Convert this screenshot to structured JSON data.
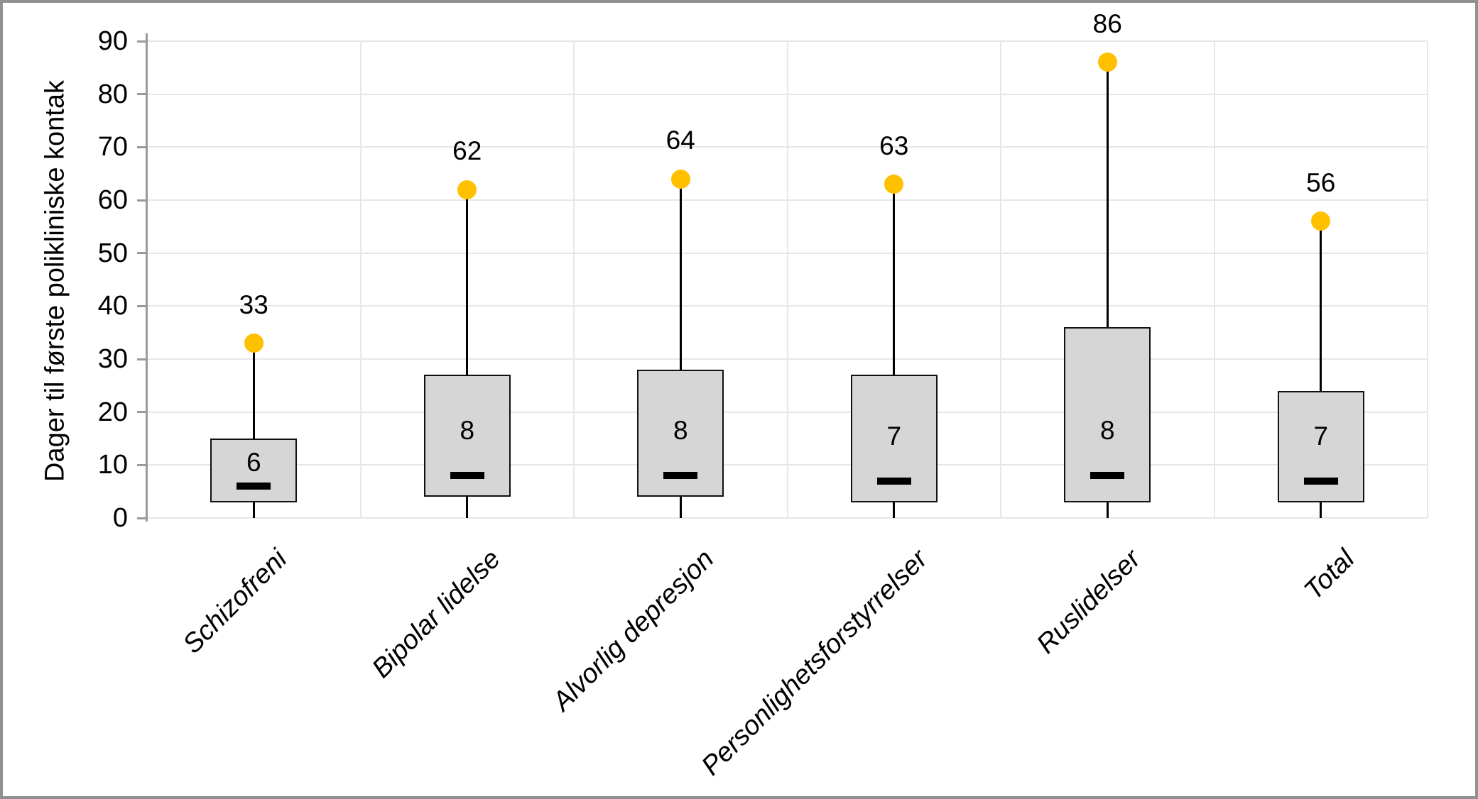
{
  "figure": {
    "background": "#ffffff",
    "frame_border_color": "#919191"
  },
  "y_axis": {
    "title": "Dager til første polikliniske kontak",
    "min": 0,
    "max": 90,
    "step": 10,
    "tick_labels": [
      "0",
      "10",
      "20",
      "30",
      "40",
      "50",
      "60",
      "70",
      "80",
      "90"
    ]
  },
  "colors": {
    "dot": "#FFC000",
    "box_fill": "#d6d6d6",
    "box_border": "#111111",
    "whisker": "#000000",
    "gridline": "#e7e7e7",
    "axis": "#9a9a9a",
    "text": "#000000"
  },
  "chart_data": {
    "type": "box",
    "title": "",
    "ylabel": "Dager til første polikliniske kontak",
    "xlabel": "",
    "ylim": [
      0,
      90
    ],
    "grid": true,
    "legend": false,
    "categories": [
      "Schizofreni",
      "Bipolar lidelse",
      "Alvorlig depresjon",
      "Personlighetsforstyrrelser",
      "Ruslidelser",
      "Total"
    ],
    "series": [
      {
        "category": "Schizofreni",
        "whisker_low": 0,
        "box_bottom": 3,
        "median": 6,
        "median_label": "6",
        "box_top": 15,
        "upper_value": 33,
        "upper_label": "33"
      },
      {
        "category": "Bipolar lidelse",
        "whisker_low": 0,
        "box_bottom": 4,
        "median": 8,
        "median_label": "8",
        "box_top": 27,
        "upper_value": 62,
        "upper_label": "62"
      },
      {
        "category": "Alvorlig depresjon",
        "whisker_low": 0,
        "box_bottom": 4,
        "median": 8,
        "median_label": "8",
        "box_top": 28,
        "upper_value": 64,
        "upper_label": "64"
      },
      {
        "category": "Personlighetsforstyrrelser",
        "whisker_low": 0,
        "box_bottom": 3,
        "median": 7,
        "median_label": "7",
        "box_top": 27,
        "upper_value": 63,
        "upper_label": "63"
      },
      {
        "category": "Ruslidelser",
        "whisker_low": 0,
        "box_bottom": 3,
        "median": 8,
        "median_label": "8",
        "box_top": 36,
        "upper_value": 86,
        "upper_label": "86"
      },
      {
        "category": "Total",
        "whisker_low": 0,
        "box_bottom": 3,
        "median": 7,
        "median_label": "7",
        "box_top": 24,
        "upper_value": 56,
        "upper_label": "56"
      }
    ]
  }
}
